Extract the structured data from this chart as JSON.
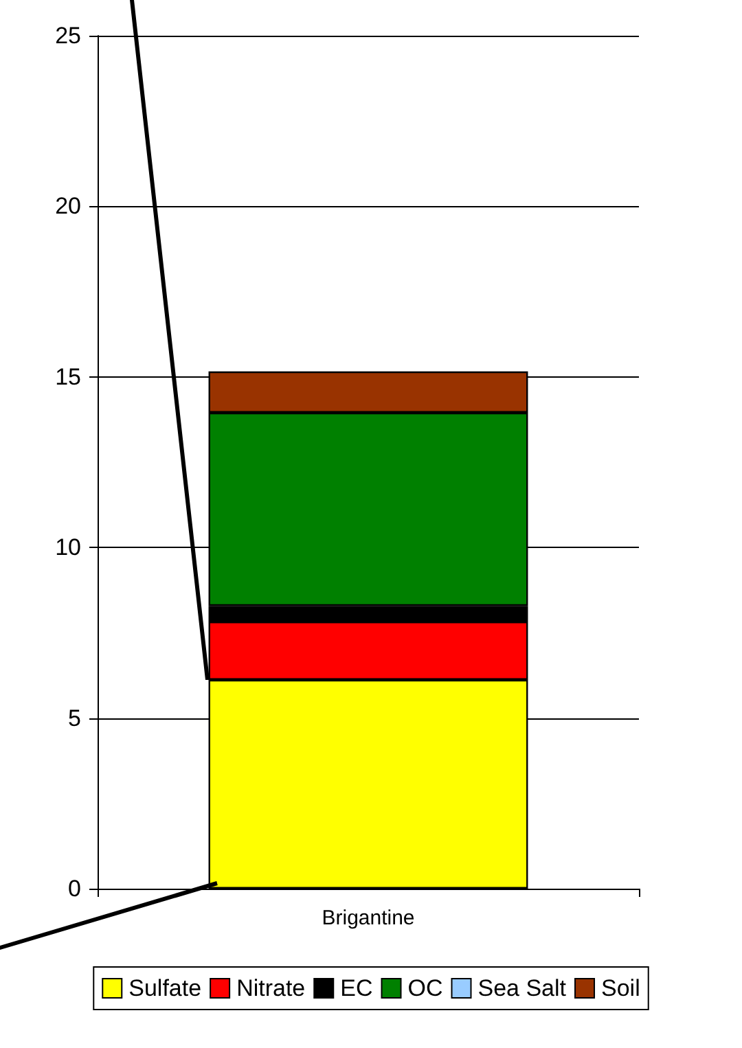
{
  "chart_data": {
    "type": "bar",
    "stacked": true,
    "categories": [
      "Brigantine"
    ],
    "series": [
      {
        "name": "Sulfate",
        "color": "#ffff00",
        "values": [
          6.12
        ]
      },
      {
        "name": "Nitrate",
        "color": "#ff0000",
        "values": [
          1.71
        ]
      },
      {
        "name": "EC",
        "color": "#000000",
        "values": [
          0.46
        ]
      },
      {
        "name": "OC",
        "color": "#008000",
        "values": [
          5.66
        ]
      },
      {
        "name": "Sea Salt",
        "color": "#99ccff",
        "values": [
          null
        ]
      },
      {
        "name": "Soil",
        "color": "#993300",
        "values": [
          1.21
        ]
      }
    ],
    "ylim": [
      0,
      25
    ],
    "yticks": [
      0,
      5,
      10,
      15,
      20,
      25
    ],
    "grid": "y",
    "legend": "bottom"
  }
}
